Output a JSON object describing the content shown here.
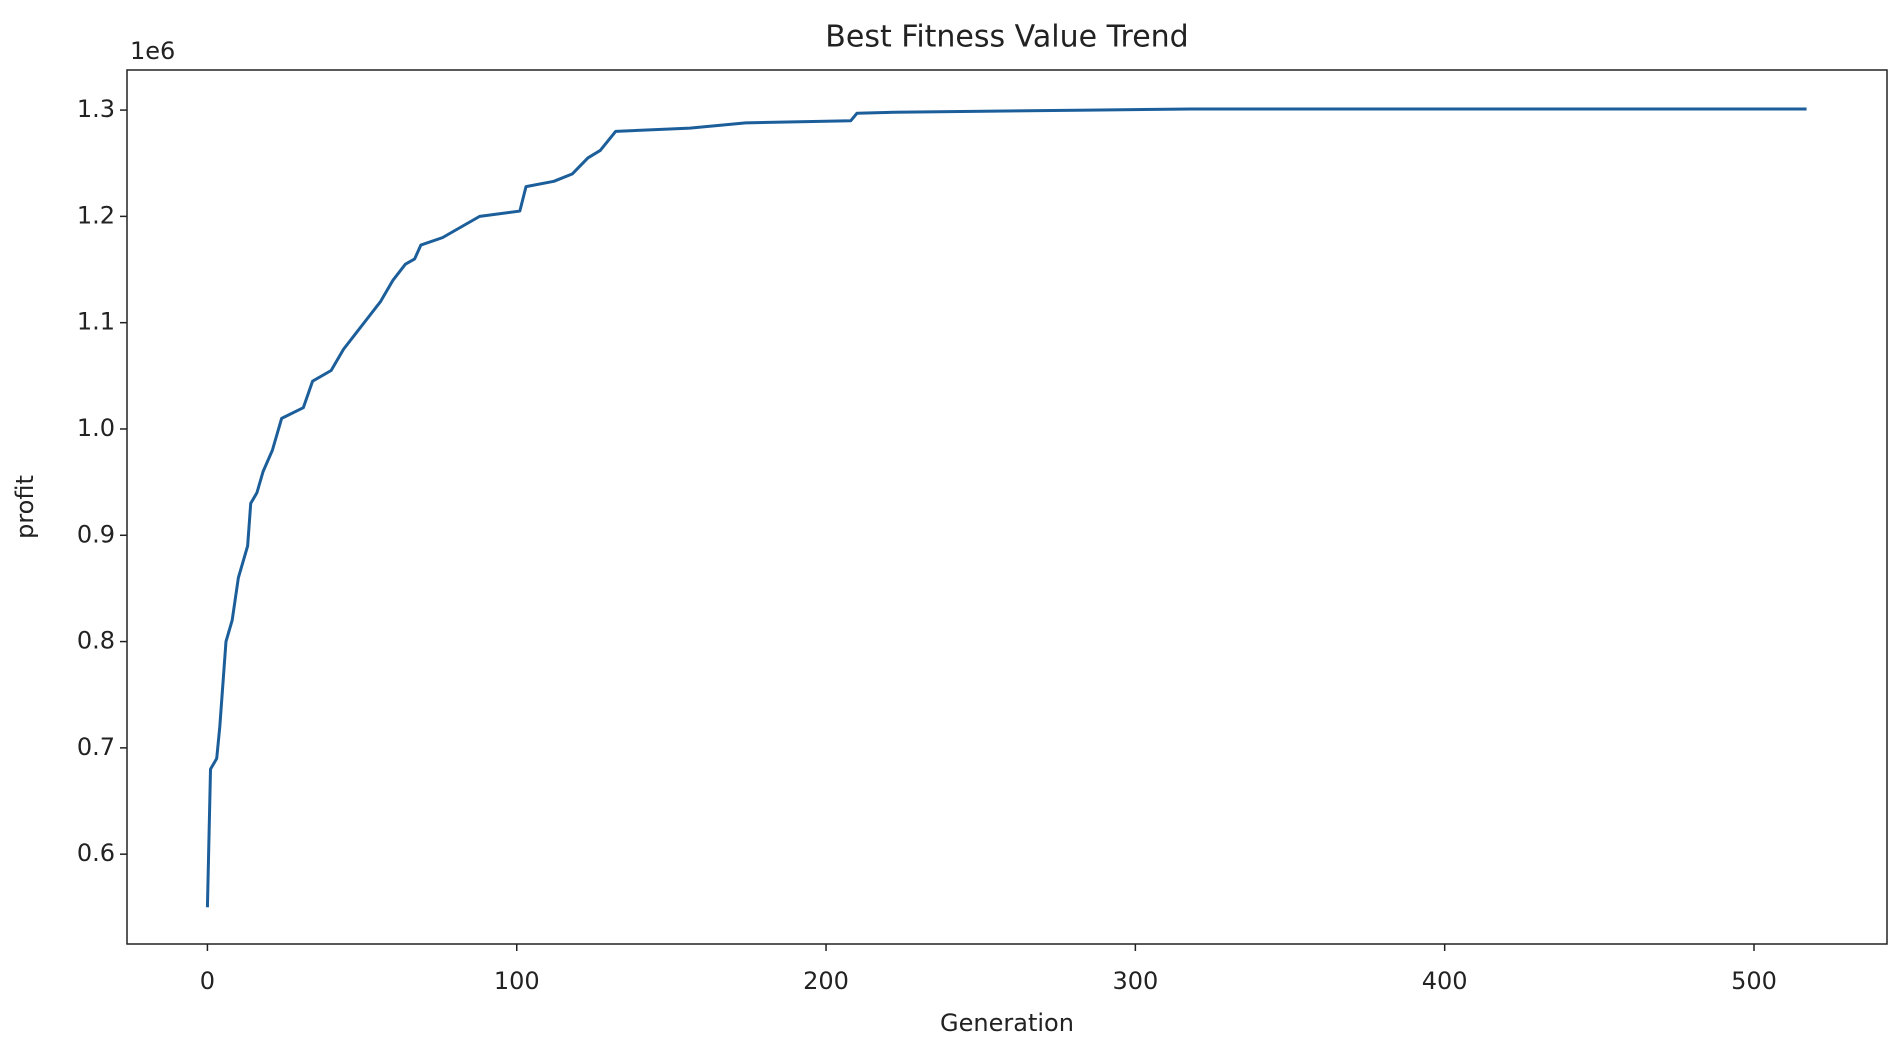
{
  "chart_data": {
    "type": "line",
    "title": "Best Fitness Value Trend",
    "x_label": "Generation",
    "y_label": "profit",
    "y_offset_label": "1e6",
    "x": [
      0,
      1,
      3,
      4,
      5,
      6,
      8,
      10,
      13,
      14,
      16,
      18,
      21,
      24,
      31,
      34,
      40,
      44,
      48,
      52,
      56,
      60,
      64,
      67,
      69,
      76,
      82,
      88,
      101,
      103,
      112,
      118,
      123,
      127,
      132,
      156,
      174,
      208,
      210,
      222,
      285,
      318,
      517
    ],
    "series": [
      {
        "name": "Best Fitness",
        "color": "#1b5e9a",
        "values": [
          0.55,
          0.68,
          0.69,
          0.72,
          0.76,
          0.8,
          0.82,
          0.86,
          0.89,
          0.93,
          0.94,
          0.96,
          0.98,
          1.01,
          1.02,
          1.045,
          1.055,
          1.075,
          1.09,
          1.105,
          1.12,
          1.14,
          1.155,
          1.16,
          1.173,
          1.18,
          1.19,
          1.2,
          1.205,
          1.228,
          1.233,
          1.24,
          1.255,
          1.262,
          1.28,
          1.283,
          1.288,
          1.29,
          1.297,
          1.298,
          1.3,
          1.301,
          1.301
        ]
      }
    ],
    "xlim": [
      -26,
      543
    ],
    "ylim": [
      0.5155,
      1.3377
    ],
    "xticks": [
      0,
      100,
      200,
      300,
      400,
      500
    ],
    "yticks": [
      0.6,
      0.7,
      0.8,
      0.9,
      {
        "value": 1,
        "label": "1.0"
      },
      1.1,
      1.2,
      1.3
    ]
  }
}
